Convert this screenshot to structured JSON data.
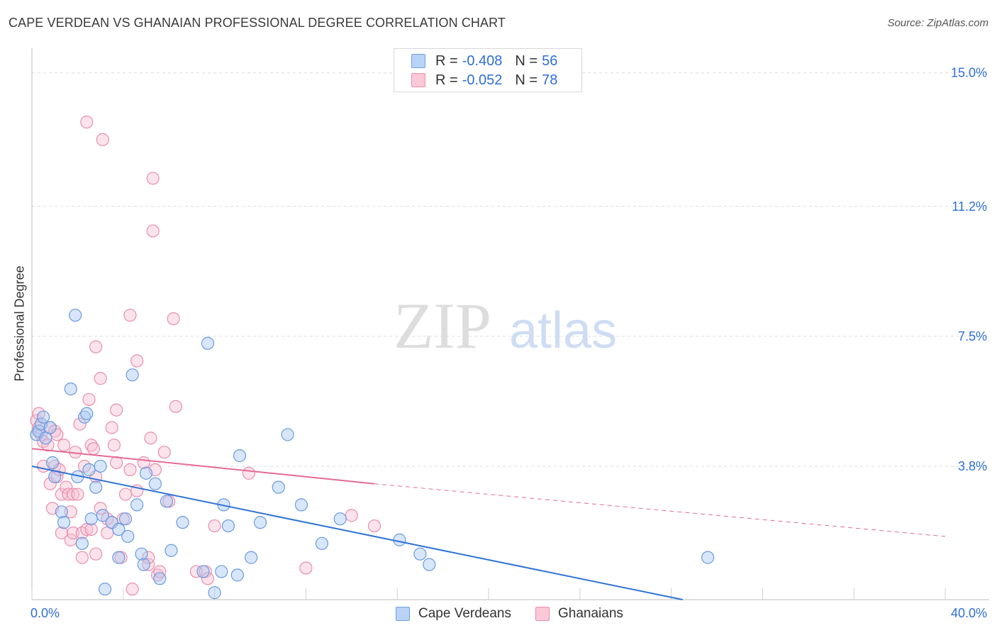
{
  "header": {
    "title": "CAPE VERDEAN VS GHANAIAN PROFESSIONAL DEGREE CORRELATION CHART",
    "source": "Source: ZipAtlas.com"
  },
  "watermark": {
    "zip": "ZIP",
    "atlas": "atlas"
  },
  "legend_top": {
    "rows": [
      {
        "r_label": "R =",
        "r_value": "-0.408",
        "n_label": "N =",
        "n_value": "56"
      },
      {
        "r_label": "R =",
        "r_value": "-0.052",
        "n_label": "N =",
        "n_value": "78"
      }
    ]
  },
  "legend_bottom": {
    "series1": "Cape Verdeans",
    "series2": "Ghanaians"
  },
  "colors": {
    "blue_fill": "#a9c8f2",
    "blue_stroke": "#6a9ae0",
    "blue_line": "#2f72d6",
    "pink_fill": "#f7c0d2",
    "pink_stroke": "#e98fab",
    "pink_line": "#e56b93",
    "grid": "#dcdcdc",
    "tick_text": "#2f6fd6"
  },
  "chart_data": {
    "type": "scatter",
    "title": "CAPE VERDEAN VS GHANAIAN PROFESSIONAL DEGREE CORRELATION CHART",
    "xlabel": "",
    "ylabel": "Professional Degree",
    "xlim": [
      0,
      40
    ],
    "ylim": [
      0,
      15.5
    ],
    "x_tick_labels": [
      "0.0%",
      "40.0%"
    ],
    "y_ticks": [
      3.8,
      7.5,
      11.2,
      15.0
    ],
    "y_tick_labels": [
      "3.8%",
      "7.5%",
      "11.2%",
      "15.0%"
    ],
    "series": [
      {
        "name": "Cape Verdeans",
        "r": -0.408,
        "n": 56,
        "trend": {
          "x0": 0,
          "y0": 3.8,
          "x1": 28.5,
          "y1": 0.0
        },
        "points": [
          [
            0.2,
            4.7
          ],
          [
            0.3,
            4.8
          ],
          [
            0.4,
            5.0
          ],
          [
            0.5,
            5.2
          ],
          [
            0.6,
            4.6
          ],
          [
            0.8,
            4.9
          ],
          [
            0.9,
            3.9
          ],
          [
            1.0,
            3.5
          ],
          [
            1.3,
            2.5
          ],
          [
            1.4,
            2.2
          ],
          [
            1.7,
            6.0
          ],
          [
            1.9,
            8.1
          ],
          [
            2.0,
            3.5
          ],
          [
            2.2,
            1.6
          ],
          [
            2.3,
            5.2
          ],
          [
            2.4,
            5.3
          ],
          [
            2.5,
            3.7
          ],
          [
            2.6,
            2.3
          ],
          [
            2.8,
            3.2
          ],
          [
            3.0,
            3.8
          ],
          [
            3.1,
            2.4
          ],
          [
            3.2,
            0.3
          ],
          [
            3.5,
            2.2
          ],
          [
            3.8,
            2.0
          ],
          [
            3.8,
            1.2
          ],
          [
            4.1,
            2.3
          ],
          [
            4.2,
            1.8
          ],
          [
            4.4,
            6.4
          ],
          [
            4.6,
            2.7
          ],
          [
            4.8,
            1.3
          ],
          [
            4.9,
            1.0
          ],
          [
            5.0,
            3.6
          ],
          [
            5.4,
            3.3
          ],
          [
            5.6,
            0.6
          ],
          [
            5.9,
            2.8
          ],
          [
            6.1,
            1.4
          ],
          [
            6.6,
            2.2
          ],
          [
            7.5,
            0.8
          ],
          [
            7.7,
            7.3
          ],
          [
            8.0,
            0.2
          ],
          [
            8.3,
            0.8
          ],
          [
            8.4,
            2.7
          ],
          [
            8.6,
            2.1
          ],
          [
            9.0,
            0.7
          ],
          [
            9.1,
            4.1
          ],
          [
            9.6,
            1.2
          ],
          [
            10.0,
            2.2
          ],
          [
            10.8,
            3.2
          ],
          [
            11.2,
            4.7
          ],
          [
            11.8,
            2.7
          ],
          [
            12.7,
            1.6
          ],
          [
            13.5,
            2.3
          ],
          [
            16.1,
            1.7
          ],
          [
            17.0,
            1.3
          ],
          [
            17.4,
            1.0
          ],
          [
            29.6,
            1.2
          ]
        ]
      },
      {
        "name": "Ghanaians",
        "r": -0.052,
        "n": 78,
        "trend": {
          "x0": 0,
          "y0": 4.3,
          "x1": 15.0,
          "y1": 3.3
        },
        "trend_dashed": {
          "x0": 15.0,
          "y0": 3.3,
          "x1": 40,
          "y1": 1.8
        },
        "points": [
          [
            0.2,
            5.1
          ],
          [
            0.3,
            5.3
          ],
          [
            0.3,
            4.9
          ],
          [
            0.4,
            4.7
          ],
          [
            0.5,
            4.5
          ],
          [
            0.5,
            3.8
          ],
          [
            0.7,
            4.4
          ],
          [
            0.8,
            4.9
          ],
          [
            0.8,
            3.3
          ],
          [
            0.9,
            2.6
          ],
          [
            1.0,
            3.8
          ],
          [
            1.0,
            4.8
          ],
          [
            1.1,
            4.7
          ],
          [
            1.1,
            3.5
          ],
          [
            1.2,
            3.7
          ],
          [
            1.3,
            3.0
          ],
          [
            1.3,
            1.9
          ],
          [
            1.4,
            4.4
          ],
          [
            1.5,
            3.2
          ],
          [
            1.6,
            3.0
          ],
          [
            1.7,
            1.7
          ],
          [
            1.7,
            2.5
          ],
          [
            1.8,
            3.0
          ],
          [
            1.8,
            1.9
          ],
          [
            1.9,
            4.2
          ],
          [
            2.0,
            3.0
          ],
          [
            2.1,
            5.0
          ],
          [
            2.2,
            1.9
          ],
          [
            2.2,
            1.2
          ],
          [
            2.3,
            3.8
          ],
          [
            2.4,
            2.0
          ],
          [
            2.4,
            13.6
          ],
          [
            2.5,
            5.7
          ],
          [
            2.6,
            2.0
          ],
          [
            2.6,
            4.4
          ],
          [
            2.7,
            4.3
          ],
          [
            2.8,
            3.5
          ],
          [
            2.8,
            7.2
          ],
          [
            2.8,
            1.3
          ],
          [
            3.0,
            6.3
          ],
          [
            3.0,
            2.6
          ],
          [
            3.1,
            13.1
          ],
          [
            3.3,
            2.3
          ],
          [
            3.3,
            1.9
          ],
          [
            3.5,
            4.9
          ],
          [
            3.5,
            2.2
          ],
          [
            3.6,
            4.4
          ],
          [
            3.7,
            5.4
          ],
          [
            3.7,
            3.9
          ],
          [
            3.9,
            1.2
          ],
          [
            4.0,
            2.3
          ],
          [
            4.1,
            3.0
          ],
          [
            4.3,
            8.1
          ],
          [
            4.3,
            3.7
          ],
          [
            4.4,
            0.3
          ],
          [
            4.6,
            6.8
          ],
          [
            4.6,
            3.1
          ],
          [
            4.9,
            3.9
          ],
          [
            5.1,
            1.0
          ],
          [
            5.1,
            1.2
          ],
          [
            5.2,
            4.6
          ],
          [
            5.3,
            12.0
          ],
          [
            5.3,
            10.5
          ],
          [
            5.4,
            3.7
          ],
          [
            5.5,
            0.7
          ],
          [
            5.6,
            0.8
          ],
          [
            5.8,
            4.2
          ],
          [
            6.0,
            2.8
          ],
          [
            6.2,
            8.0
          ],
          [
            6.3,
            5.5
          ],
          [
            7.2,
            0.8
          ],
          [
            7.6,
            0.8
          ],
          [
            7.7,
            0.6
          ],
          [
            8.0,
            2.1
          ],
          [
            9.5,
            3.6
          ],
          [
            12.0,
            0.9
          ],
          [
            14.0,
            2.4
          ],
          [
            15.0,
            2.1
          ]
        ]
      }
    ]
  }
}
